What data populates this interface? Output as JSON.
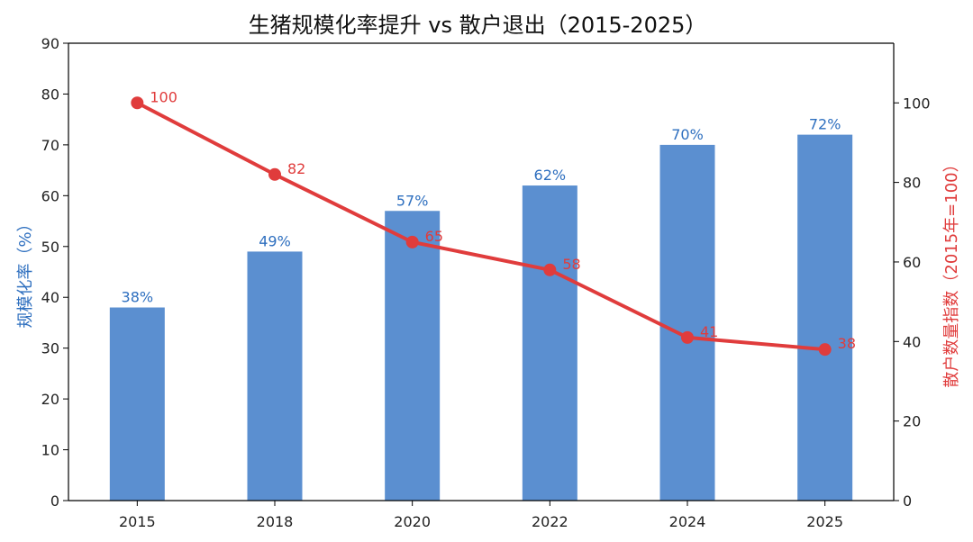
{
  "chart_data": {
    "type": "bar+line",
    "title": "生猪规模化率提升 vs 散户退出（2015-2025）",
    "categories": [
      "2015",
      "2018",
      "2020",
      "2022",
      "2024",
      "2025"
    ],
    "bar_series": {
      "name": "规模化率",
      "values": [
        38,
        49,
        57,
        62,
        70,
        72
      ],
      "labels": [
        "38%",
        "49%",
        "57%",
        "62%",
        "70%",
        "72%"
      ],
      "color": "#5b8fd0"
    },
    "line_series": {
      "name": "散户数量指数",
      "values": [
        100,
        82,
        65,
        58,
        41,
        38
      ],
      "labels": [
        "100",
        "82",
        "65",
        "58",
        "41",
        "38"
      ],
      "color": "#e03c3c"
    },
    "y_left": {
      "label": "规模化率（%）",
      "lim": [
        0,
        90
      ],
      "ticks": [
        0,
        10,
        20,
        30,
        40,
        50,
        60,
        70,
        80,
        90
      ],
      "color": "#2e6fbf"
    },
    "y_right": {
      "label": "散户数量指数（2015年=100）",
      "lim": [
        0,
        115
      ],
      "ticks": [
        0,
        20,
        40,
        60,
        80,
        100
      ],
      "color": "#e03c3c"
    },
    "grid": false
  }
}
